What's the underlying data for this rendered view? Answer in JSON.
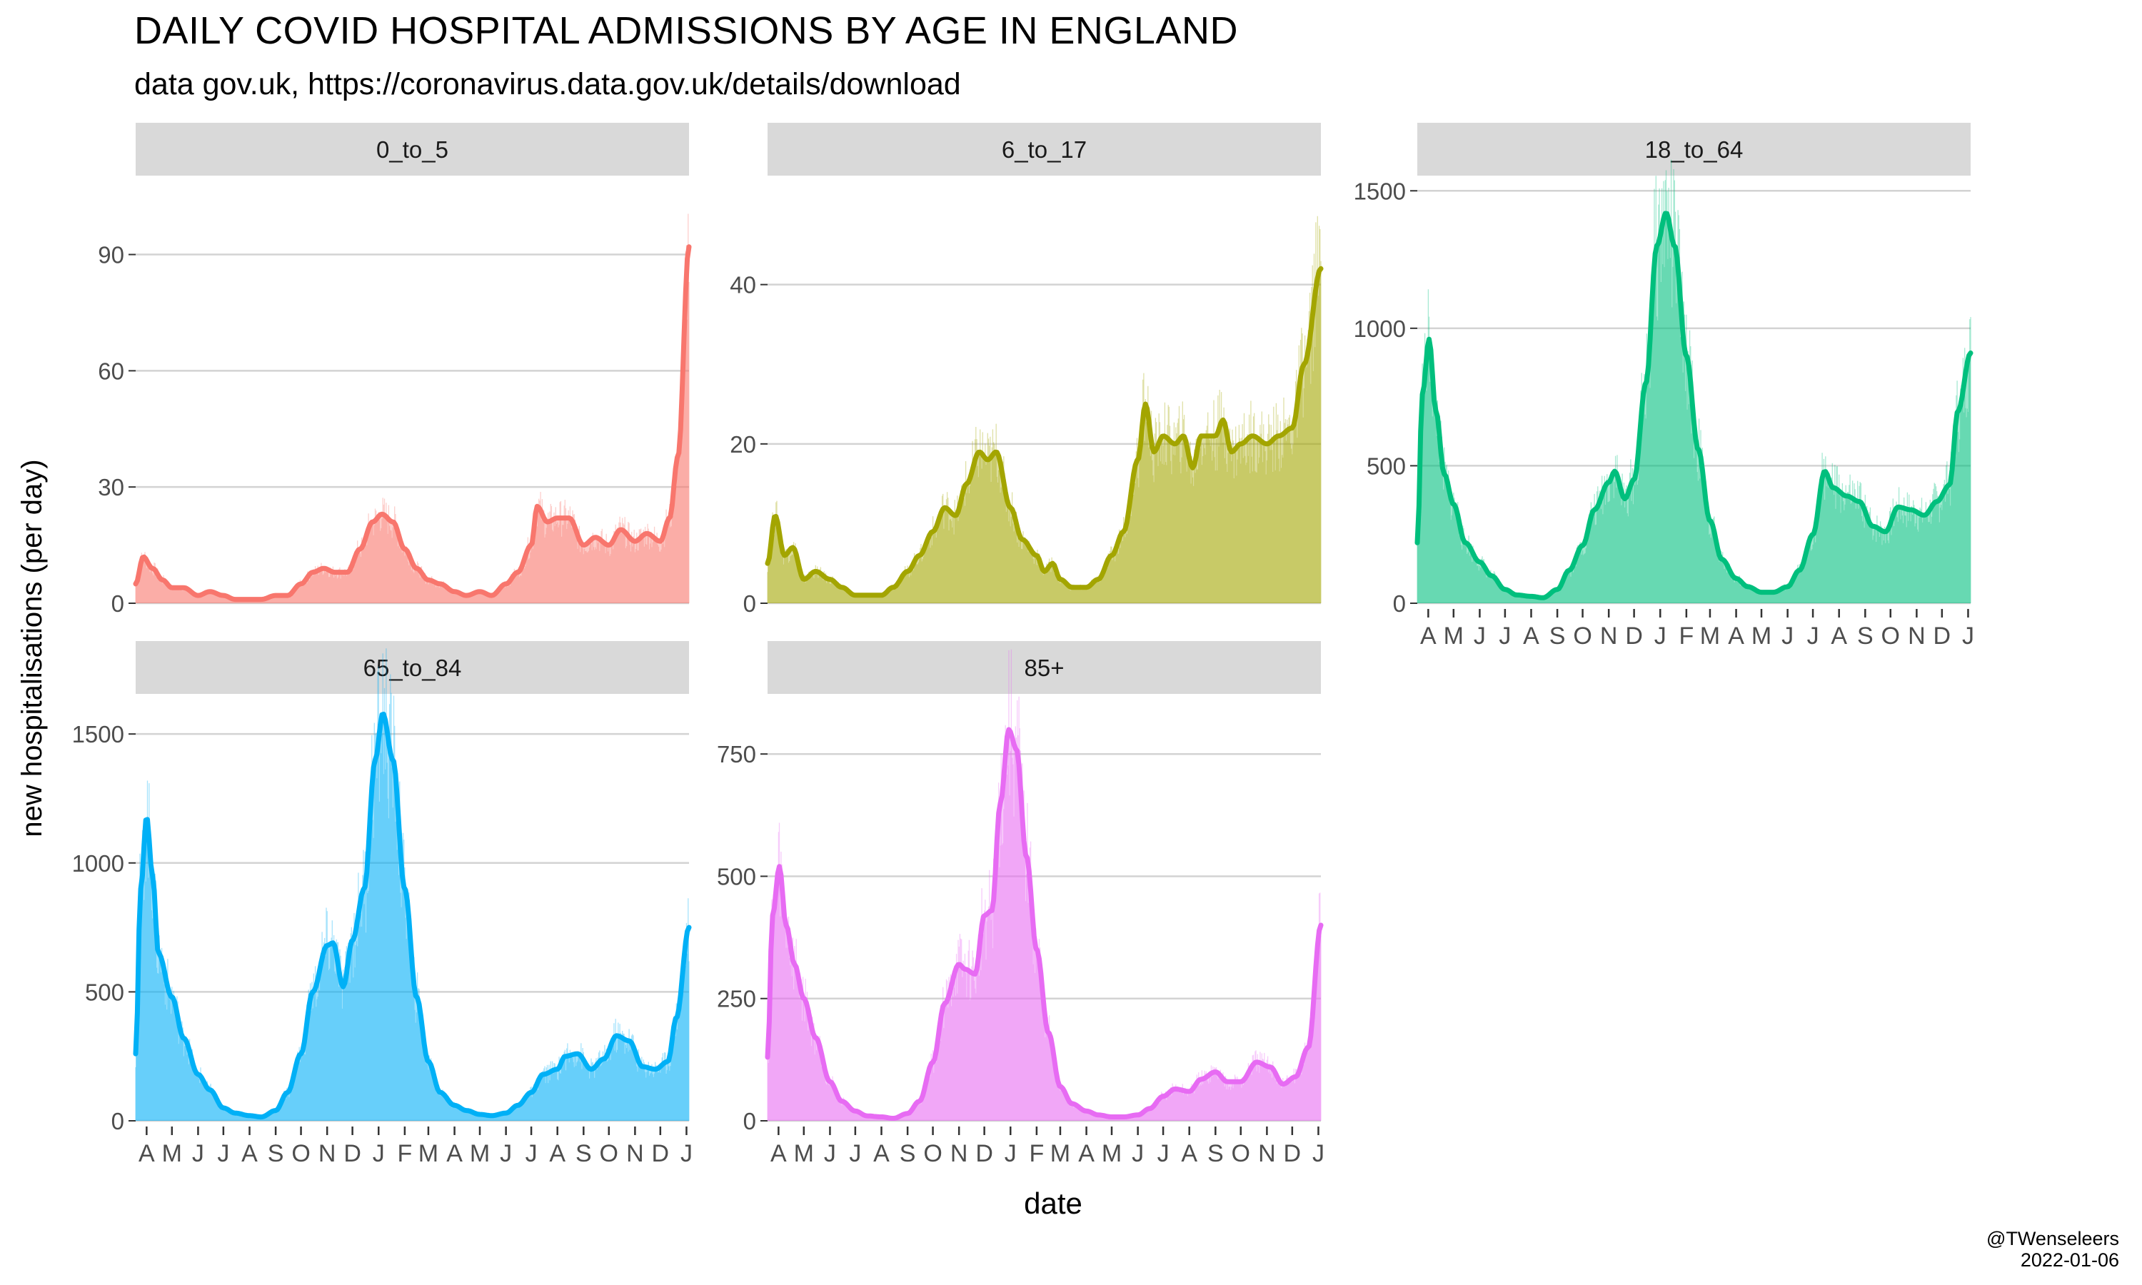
{
  "title": "DAILY COVID HOSPITAL ADMISSIONS BY AGE IN ENGLAND",
  "subtitle": "data gov.uk, https://coronavirus.data.gov.uk/details/download",
  "credit": {
    "handle": "@TWenseleers",
    "date": "2022-01-06"
  },
  "chart_data": {
    "type": "area",
    "title": "DAILY COVID HOSPITAL ADMISSIONS BY AGE IN ENGLAND",
    "subtitle": "data gov.uk, https://coronavirus.data.gov.uk/details/download",
    "xlabel": "date",
    "ylabel": "new hospitalisations (per day)",
    "grid": true,
    "facet_by": "age",
    "x_range": [
      "2020-03-19",
      "2022-01-04"
    ],
    "x_tick_dates": [
      "2020-04-01",
      "2020-05-01",
      "2020-06-01",
      "2020-07-01",
      "2020-08-01",
      "2020-09-01",
      "2020-10-01",
      "2020-11-01",
      "2020-12-01",
      "2021-01-01",
      "2021-02-01",
      "2021-03-01",
      "2021-04-01",
      "2021-05-01",
      "2021-06-01",
      "2021-07-01",
      "2021-08-01",
      "2021-09-01",
      "2021-10-01",
      "2021-11-01",
      "2021-12-01",
      "2022-01-01"
    ],
    "x_tick_labels": [
      "A",
      "M",
      "J",
      "J",
      "A",
      "S",
      "O",
      "N",
      "D",
      "J",
      "F",
      "M",
      "A",
      "M",
      "J",
      "J",
      "A",
      "S",
      "O",
      "N",
      "D",
      "J"
    ],
    "series": [
      {
        "name": "0_to_5",
        "color": "#F8766D",
        "ylim": [
          0,
          110
        ],
        "yticks": [
          0,
          30,
          60,
          90
        ],
        "points": [
          [
            "2020-03-19",
            5
          ],
          [
            "2020-03-28",
            12
          ],
          [
            "2020-04-08",
            9
          ],
          [
            "2020-04-20",
            6
          ],
          [
            "2020-05-01",
            4
          ],
          [
            "2020-05-15",
            4
          ],
          [
            "2020-06-01",
            2
          ],
          [
            "2020-06-15",
            3
          ],
          [
            "2020-07-01",
            2
          ],
          [
            "2020-07-15",
            1
          ],
          [
            "2020-08-01",
            1
          ],
          [
            "2020-08-15",
            1
          ],
          [
            "2020-09-01",
            2
          ],
          [
            "2020-09-15",
            2
          ],
          [
            "2020-10-01",
            5
          ],
          [
            "2020-10-15",
            8
          ],
          [
            "2020-10-28",
            9
          ],
          [
            "2020-11-10",
            8
          ],
          [
            "2020-11-25",
            8
          ],
          [
            "2020-12-10",
            14
          ],
          [
            "2020-12-25",
            21
          ],
          [
            "2021-01-05",
            23
          ],
          [
            "2021-01-18",
            21
          ],
          [
            "2021-02-01",
            14
          ],
          [
            "2021-02-15",
            9
          ],
          [
            "2021-03-01",
            6
          ],
          [
            "2021-03-15",
            5
          ],
          [
            "2021-04-01",
            3
          ],
          [
            "2021-04-15",
            2
          ],
          [
            "2021-05-01",
            3
          ],
          [
            "2021-05-15",
            2
          ],
          [
            "2021-06-01",
            5
          ],
          [
            "2021-06-15",
            8
          ],
          [
            "2021-07-01",
            15
          ],
          [
            "2021-07-08",
            25
          ],
          [
            "2021-07-20",
            21
          ],
          [
            "2021-08-01",
            22
          ],
          [
            "2021-08-15",
            22
          ],
          [
            "2021-09-01",
            15
          ],
          [
            "2021-09-15",
            17
          ],
          [
            "2021-10-01",
            15
          ],
          [
            "2021-10-15",
            19
          ],
          [
            "2021-11-01",
            16
          ],
          [
            "2021-11-15",
            18
          ],
          [
            "2021-12-01",
            16
          ],
          [
            "2021-12-12",
            22
          ],
          [
            "2021-12-22",
            38
          ],
          [
            "2022-01-04",
            92
          ]
        ]
      },
      {
        "name": "6_to_17",
        "color": "#A3A500",
        "ylim": [
          0,
          53.5
        ],
        "yticks": [
          0,
          20,
          40
        ],
        "points": [
          [
            "2020-03-19",
            5
          ],
          [
            "2020-03-28",
            11
          ],
          [
            "2020-04-08",
            6
          ],
          [
            "2020-04-18",
            7
          ],
          [
            "2020-05-01",
            3
          ],
          [
            "2020-05-15",
            4
          ],
          [
            "2020-06-01",
            3
          ],
          [
            "2020-06-15",
            2
          ],
          [
            "2020-07-01",
            1
          ],
          [
            "2020-07-15",
            1
          ],
          [
            "2020-08-01",
            1
          ],
          [
            "2020-08-15",
            2
          ],
          [
            "2020-09-01",
            4
          ],
          [
            "2020-09-15",
            6
          ],
          [
            "2020-10-01",
            9
          ],
          [
            "2020-10-15",
            12
          ],
          [
            "2020-10-28",
            11
          ],
          [
            "2020-11-10",
            15
          ],
          [
            "2020-11-25",
            19
          ],
          [
            "2020-12-05",
            18
          ],
          [
            "2020-12-15",
            19
          ],
          [
            "2021-01-01",
            12
          ],
          [
            "2021-01-15",
            8
          ],
          [
            "2021-02-01",
            6
          ],
          [
            "2021-02-10",
            4
          ],
          [
            "2021-02-20",
            5
          ],
          [
            "2021-03-01",
            3
          ],
          [
            "2021-03-15",
            2
          ],
          [
            "2021-04-01",
            2
          ],
          [
            "2021-04-15",
            3
          ],
          [
            "2021-05-01",
            6
          ],
          [
            "2021-05-15",
            9
          ],
          [
            "2021-06-01",
            18
          ],
          [
            "2021-06-10",
            25
          ],
          [
            "2021-06-20",
            19
          ],
          [
            "2021-07-01",
            21
          ],
          [
            "2021-07-15",
            20
          ],
          [
            "2021-07-25",
            21
          ],
          [
            "2021-08-05",
            17
          ],
          [
            "2021-08-15",
            21
          ],
          [
            "2021-09-01",
            21
          ],
          [
            "2021-09-10",
            23
          ],
          [
            "2021-09-20",
            19
          ],
          [
            "2021-10-01",
            20
          ],
          [
            "2021-10-15",
            21
          ],
          [
            "2021-11-01",
            20
          ],
          [
            "2021-11-15",
            21
          ],
          [
            "2021-12-01",
            22
          ],
          [
            "2021-12-15",
            30
          ],
          [
            "2022-01-04",
            42
          ]
        ]
      },
      {
        "name": "18_to_64",
        "color": "#00BF7D",
        "ylim": [
          0,
          1550
        ],
        "yticks": [
          0,
          500,
          1000,
          1500
        ],
        "points": [
          [
            "2020-03-19",
            220
          ],
          [
            "2020-03-25",
            760
          ],
          [
            "2020-04-02",
            960
          ],
          [
            "2020-04-10",
            700
          ],
          [
            "2020-04-20",
            470
          ],
          [
            "2020-05-01",
            360
          ],
          [
            "2020-05-15",
            220
          ],
          [
            "2020-06-01",
            150
          ],
          [
            "2020-06-15",
            100
          ],
          [
            "2020-07-01",
            50
          ],
          [
            "2020-07-15",
            30
          ],
          [
            "2020-08-01",
            25
          ],
          [
            "2020-08-15",
            20
          ],
          [
            "2020-09-01",
            50
          ],
          [
            "2020-09-15",
            120
          ],
          [
            "2020-10-01",
            210
          ],
          [
            "2020-10-15",
            340
          ],
          [
            "2020-11-01",
            440
          ],
          [
            "2020-11-08",
            480
          ],
          [
            "2020-11-20",
            380
          ],
          [
            "2020-12-01",
            450
          ],
          [
            "2020-12-15",
            800
          ],
          [
            "2020-12-28",
            1300
          ],
          [
            "2021-01-08",
            1420
          ],
          [
            "2021-01-18",
            1300
          ],
          [
            "2021-02-01",
            900
          ],
          [
            "2021-02-15",
            560
          ],
          [
            "2021-03-01",
            300
          ],
          [
            "2021-03-15",
            160
          ],
          [
            "2021-04-01",
            90
          ],
          [
            "2021-04-15",
            60
          ],
          [
            "2021-05-01",
            40
          ],
          [
            "2021-05-15",
            40
          ],
          [
            "2021-06-01",
            60
          ],
          [
            "2021-06-15",
            120
          ],
          [
            "2021-07-01",
            250
          ],
          [
            "2021-07-15",
            480
          ],
          [
            "2021-07-25",
            420
          ],
          [
            "2021-08-10",
            390
          ],
          [
            "2021-08-25",
            370
          ],
          [
            "2021-09-10",
            280
          ],
          [
            "2021-09-25",
            260
          ],
          [
            "2021-10-10",
            350
          ],
          [
            "2021-10-25",
            340
          ],
          [
            "2021-11-10",
            320
          ],
          [
            "2021-11-25",
            370
          ],
          [
            "2021-12-10",
            430
          ],
          [
            "2021-12-20",
            700
          ],
          [
            "2022-01-04",
            910
          ]
        ]
      },
      {
        "name": "65_to_84",
        "color": "#00B0F6",
        "ylim": [
          0,
          1650
        ],
        "yticks": [
          0,
          500,
          1000,
          1500
        ],
        "points": [
          [
            "2020-03-19",
            260
          ],
          [
            "2020-03-25",
            900
          ],
          [
            "2020-04-01",
            1180
          ],
          [
            "2020-04-08",
            950
          ],
          [
            "2020-04-15",
            650
          ],
          [
            "2020-05-01",
            480
          ],
          [
            "2020-05-15",
            320
          ],
          [
            "2020-06-01",
            180
          ],
          [
            "2020-06-15",
            120
          ],
          [
            "2020-07-01",
            50
          ],
          [
            "2020-07-15",
            30
          ],
          [
            "2020-08-01",
            20
          ],
          [
            "2020-08-15",
            15
          ],
          [
            "2020-09-01",
            40
          ],
          [
            "2020-09-15",
            110
          ],
          [
            "2020-10-01",
            260
          ],
          [
            "2020-10-15",
            500
          ],
          [
            "2020-11-01",
            680
          ],
          [
            "2020-11-08",
            690
          ],
          [
            "2020-11-20",
            520
          ],
          [
            "2020-12-01",
            700
          ],
          [
            "2020-12-15",
            900
          ],
          [
            "2020-12-28",
            1400
          ],
          [
            "2021-01-06",
            1580
          ],
          [
            "2021-01-18",
            1400
          ],
          [
            "2021-02-01",
            900
          ],
          [
            "2021-02-15",
            480
          ],
          [
            "2021-03-01",
            230
          ],
          [
            "2021-03-15",
            110
          ],
          [
            "2021-04-01",
            60
          ],
          [
            "2021-04-15",
            40
          ],
          [
            "2021-05-01",
            25
          ],
          [
            "2021-05-15",
            20
          ],
          [
            "2021-06-01",
            30
          ],
          [
            "2021-06-15",
            60
          ],
          [
            "2021-07-01",
            110
          ],
          [
            "2021-07-15",
            180
          ],
          [
            "2021-08-01",
            200
          ],
          [
            "2021-08-10",
            250
          ],
          [
            "2021-08-25",
            260
          ],
          [
            "2021-09-10",
            200
          ],
          [
            "2021-09-25",
            240
          ],
          [
            "2021-10-10",
            330
          ],
          [
            "2021-10-25",
            310
          ],
          [
            "2021-11-10",
            210
          ],
          [
            "2021-11-25",
            200
          ],
          [
            "2021-12-10",
            230
          ],
          [
            "2021-12-20",
            400
          ],
          [
            "2022-01-04",
            750
          ]
        ]
      },
      {
        "name": "85+",
        "color": "#E76BF3",
        "ylim": [
          0,
          870
        ],
        "yticks": [
          0,
          250,
          500,
          750
        ],
        "points": [
          [
            "2020-03-19",
            130
          ],
          [
            "2020-03-25",
            420
          ],
          [
            "2020-04-02",
            520
          ],
          [
            "2020-04-10",
            400
          ],
          [
            "2020-04-20",
            320
          ],
          [
            "2020-05-01",
            250
          ],
          [
            "2020-05-15",
            170
          ],
          [
            "2020-06-01",
            80
          ],
          [
            "2020-06-15",
            40
          ],
          [
            "2020-07-01",
            20
          ],
          [
            "2020-07-15",
            10
          ],
          [
            "2020-08-01",
            8
          ],
          [
            "2020-08-15",
            5
          ],
          [
            "2020-09-01",
            15
          ],
          [
            "2020-09-15",
            40
          ],
          [
            "2020-10-01",
            120
          ],
          [
            "2020-10-15",
            240
          ],
          [
            "2020-11-01",
            320
          ],
          [
            "2020-11-08",
            310
          ],
          [
            "2020-11-20",
            300
          ],
          [
            "2020-12-01",
            420
          ],
          [
            "2020-12-10",
            430
          ],
          [
            "2020-12-20",
            650
          ],
          [
            "2020-12-30",
            800
          ],
          [
            "2021-01-08",
            760
          ],
          [
            "2021-01-20",
            540
          ],
          [
            "2021-02-01",
            350
          ],
          [
            "2021-02-15",
            180
          ],
          [
            "2021-03-01",
            70
          ],
          [
            "2021-03-15",
            35
          ],
          [
            "2021-04-01",
            20
          ],
          [
            "2021-04-15",
            12
          ],
          [
            "2021-05-01",
            8
          ],
          [
            "2021-05-15",
            8
          ],
          [
            "2021-06-01",
            12
          ],
          [
            "2021-06-15",
            25
          ],
          [
            "2021-07-01",
            50
          ],
          [
            "2021-07-15",
            65
          ],
          [
            "2021-08-01",
            60
          ],
          [
            "2021-08-15",
            85
          ],
          [
            "2021-09-01",
            100
          ],
          [
            "2021-09-15",
            80
          ],
          [
            "2021-10-01",
            80
          ],
          [
            "2021-10-20",
            120
          ],
          [
            "2021-11-05",
            110
          ],
          [
            "2021-11-20",
            75
          ],
          [
            "2021-12-05",
            90
          ],
          [
            "2021-12-20",
            150
          ],
          [
            "2022-01-04",
            400
          ]
        ]
      }
    ]
  }
}
